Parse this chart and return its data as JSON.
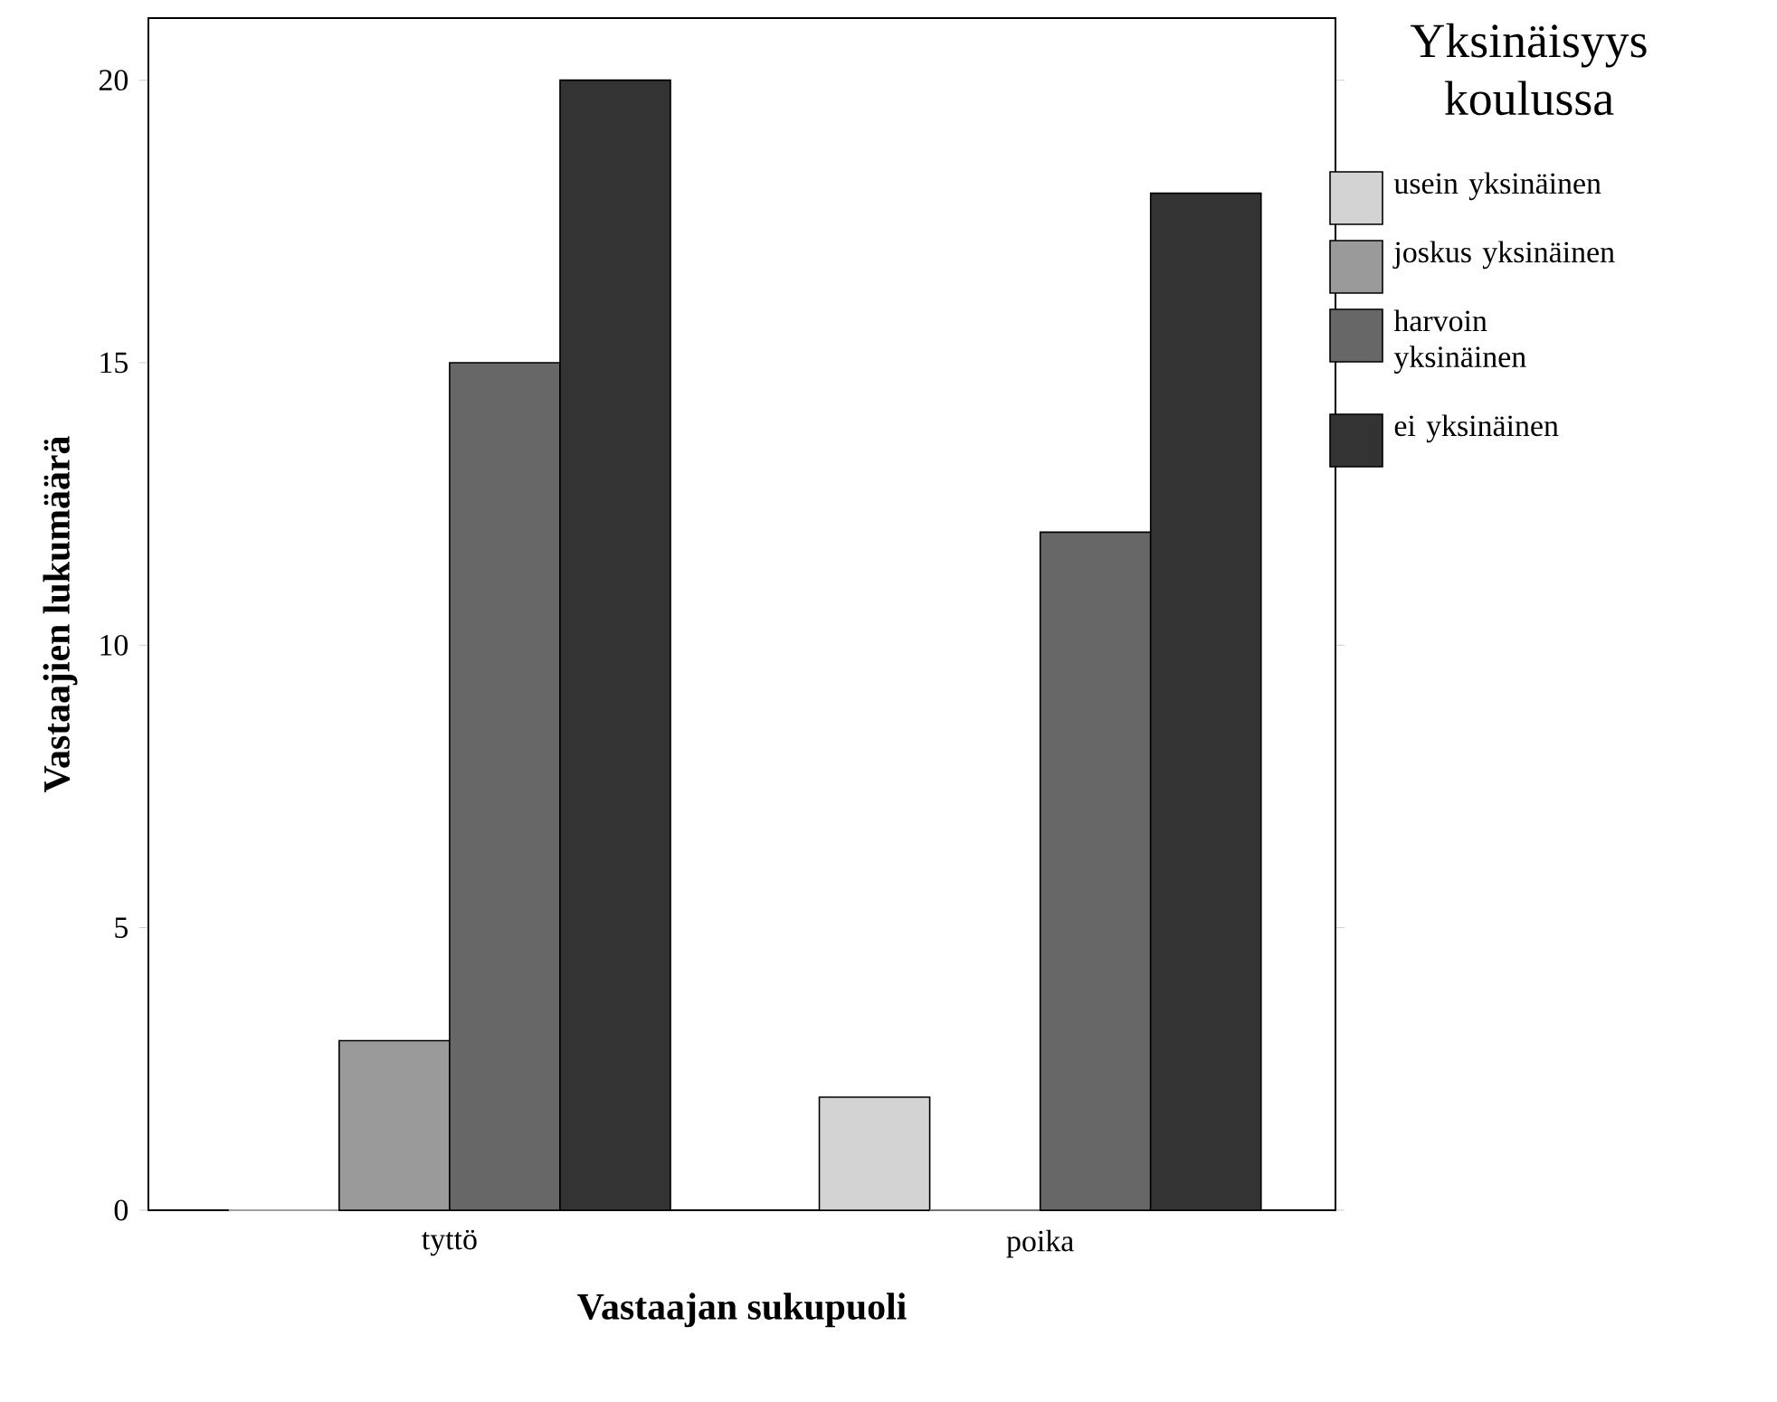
{
  "chart_data": {
    "type": "bar",
    "xlabel": "Vastaajan sukupuoli",
    "ylabel": "Vastaajien lukumäärä",
    "legend_title": "Yksinäisyys koulussa",
    "categories": [
      "tyttö",
      "poika"
    ],
    "series": [
      {
        "name": "usein yksinäinen",
        "color": "#d3d3d3",
        "values": [
          0,
          2
        ]
      },
      {
        "name": "joskus yksinäinen",
        "color": "#9a9a9a",
        "values": [
          3,
          0
        ]
      },
      {
        "name": "harvoin yksinäinen",
        "color": "#676767",
        "values": [
          15,
          12
        ]
      },
      {
        "name": "ei yksinäinen",
        "color": "#333333",
        "values": [
          20,
          18
        ]
      }
    ],
    "ylim": [
      0,
      21.1
    ],
    "yticks": [
      0,
      5,
      10,
      15,
      20
    ],
    "grid": false,
    "legend": "top right"
  }
}
